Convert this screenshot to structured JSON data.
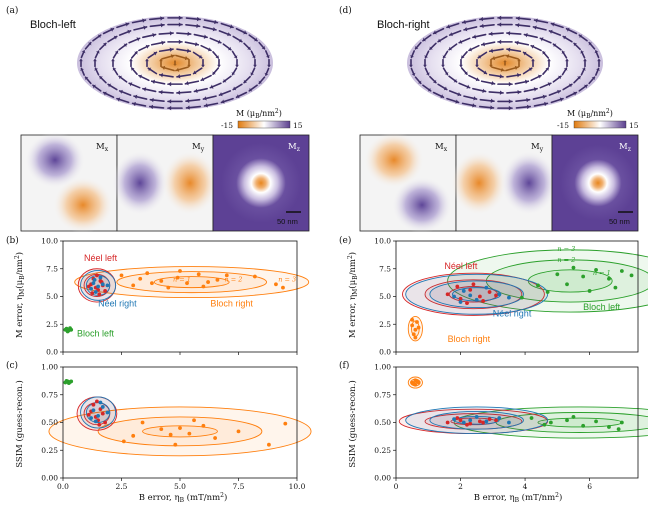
{
  "panel_labels": [
    "(a)",
    "(b)",
    "(c)",
    "(d)",
    "(e)",
    "(f)"
  ],
  "skyrmion_titles": {
    "left": "Bloch-left",
    "right": "Bloch-right"
  },
  "colorbar": {
    "title_main": "M (",
    "title_unit": "μ",
    "title_sub": "B",
    "title_rest": "/nm",
    "title_sup": "2",
    "title_close": ")",
    "min": "-15",
    "max": "15",
    "colors": [
      "#e07b10",
      "#ffffff",
      "#5b3f8f"
    ]
  },
  "component_labels": {
    "mx_main": "M",
    "mx_sub": "x",
    "my_main": "M",
    "my_sub": "y",
    "mz_main": "M",
    "mz_sub": "z"
  },
  "scale_bar": "50 nm",
  "colors": {
    "bloch_left": "#2ca02c",
    "bloch_right": "#ff7f0e",
    "neel_left": "#d62728",
    "neel_right": "#1f77b4",
    "skyrmion_rim": "#c8bedb",
    "arrow": "#3d2e66"
  },
  "chart_data": [
    {
      "type": "scatter",
      "panel": "(b)",
      "xlabel": "B error, η_B (mT/nm²)",
      "ylabel": "M error, η_M (μ_B/nm²)",
      "xlim": [
        0,
        10
      ],
      "ylim": [
        0,
        10
      ],
      "xticks": [
        "0.0",
        "2.5",
        "5.0",
        "7.5",
        "10.0"
      ],
      "yticks": [
        "0.0",
        "2.5",
        "5.0",
        "7.5",
        "10.0"
      ],
      "series": [
        {
          "name": "Néel left",
          "points": [
            [
              1.2,
              6.1
            ],
            [
              1.4,
              5.8
            ],
            [
              1.6,
              6.4
            ],
            [
              1.5,
              5.6
            ],
            [
              1.3,
              6.6
            ],
            [
              1.7,
              6.0
            ],
            [
              1.1,
              5.9
            ],
            [
              1.8,
              5.5
            ],
            [
              1.45,
              6.9
            ],
            [
              1.25,
              5.3
            ],
            [
              1.65,
              6.3
            ],
            [
              1.55,
              5.2
            ]
          ]
        },
        {
          "name": "Néel right",
          "points": [
            [
              1.3,
              6.2
            ],
            [
              1.5,
              5.9
            ],
            [
              1.7,
              6.1
            ],
            [
              1.4,
              5.4
            ],
            [
              1.6,
              6.7
            ],
            [
              1.2,
              5.7
            ],
            [
              1.9,
              6.0
            ],
            [
              1.35,
              6.5
            ]
          ]
        },
        {
          "name": "Bloch right",
          "points": [
            [
              2.5,
              6.9
            ],
            [
              3.0,
              6.0
            ],
            [
              3.6,
              7.1
            ],
            [
              4.2,
              6.4
            ],
            [
              4.9,
              6.7
            ],
            [
              5.3,
              6.2
            ],
            [
              5.8,
              7.0
            ],
            [
              6.2,
              6.3
            ],
            [
              4.5,
              5.8
            ],
            [
              3.3,
              6.6
            ],
            [
              6.6,
              6.5
            ],
            [
              8.2,
              6.8
            ],
            [
              9.1,
              6.1
            ],
            [
              9.4,
              5.8
            ],
            [
              5.0,
              7.3
            ],
            [
              7.0,
              6.9
            ],
            [
              3.8,
              6.2
            ],
            [
              6.0,
              5.9
            ]
          ]
        },
        {
          "name": "Bloch left",
          "points": [
            [
              0.1,
              2.0
            ],
            [
              0.2,
              1.9
            ],
            [
              0.3,
              2.05
            ],
            [
              0.25,
              1.95
            ],
            [
              0.15,
              2.1
            ],
            [
              0.35,
              2.0
            ],
            [
              0.2,
              1.85
            ],
            [
              0.3,
              2.15
            ]
          ]
        }
      ],
      "annotations": [
        "n = 1",
        "n = 2",
        "n = 3"
      ]
    },
    {
      "type": "scatter",
      "panel": "(c)",
      "xlabel": "B error, η_B (mT/nm²)",
      "ylabel": "SSIM (guess-recon.)",
      "xlim": [
        0,
        10
      ],
      "ylim": [
        0,
        1
      ],
      "xticks": [
        "0.0",
        "2.5",
        "5.0",
        "7.5",
        "10.0"
      ],
      "yticks": [
        "0.00",
        "0.25",
        "0.50",
        "0.75",
        "1.00"
      ],
      "series": [
        {
          "name": "Néel left",
          "points": [
            [
              1.2,
              0.6
            ],
            [
              1.4,
              0.55
            ],
            [
              1.6,
              0.62
            ],
            [
              1.5,
              0.52
            ],
            [
              1.3,
              0.66
            ],
            [
              1.7,
              0.58
            ],
            [
              1.1,
              0.57
            ],
            [
              1.8,
              0.5
            ],
            [
              1.45,
              0.69
            ],
            [
              1.55,
              0.48
            ]
          ]
        },
        {
          "name": "Néel right",
          "points": [
            [
              1.3,
              0.61
            ],
            [
              1.5,
              0.56
            ],
            [
              1.7,
              0.64
            ],
            [
              1.4,
              0.51
            ],
            [
              1.6,
              0.68
            ],
            [
              1.2,
              0.54
            ],
            [
              1.9,
              0.59
            ]
          ]
        },
        {
          "name": "Bloch right",
          "points": [
            [
              2.6,
              0.33
            ],
            [
              3.4,
              0.5
            ],
            [
              4.2,
              0.44
            ],
            [
              4.6,
              0.39
            ],
            [
              5.0,
              0.45
            ],
            [
              5.4,
              0.4
            ],
            [
              6.0,
              0.47
            ],
            [
              6.5,
              0.36
            ],
            [
              4.8,
              0.3
            ],
            [
              7.5,
              0.42
            ],
            [
              8.8,
              0.3
            ],
            [
              9.5,
              0.49
            ],
            [
              3.0,
              0.38
            ],
            [
              5.6,
              0.52
            ]
          ]
        },
        {
          "name": "Bloch left",
          "points": [
            [
              0.1,
              0.86
            ],
            [
              0.2,
              0.87
            ],
            [
              0.3,
              0.865
            ],
            [
              0.15,
              0.875
            ],
            [
              0.25,
              0.855
            ],
            [
              0.35,
              0.87
            ]
          ]
        }
      ]
    },
    {
      "type": "scatter",
      "panel": "(e)",
      "xlabel": "B error, η_B (mT/nm²)",
      "ylabel": "M error, η_M (μ_B/nm²)",
      "xlim": [
        0,
        7.5
      ],
      "ylim": [
        0,
        10
      ],
      "xticks": [
        "0",
        "2",
        "4",
        "6"
      ],
      "yticks": [
        "0.0",
        "2.5",
        "5.0",
        "7.5",
        "10.0"
      ],
      "series": [
        {
          "name": "Néel left",
          "points": [
            [
              1.6,
              5.2
            ],
            [
              2.0,
              4.8
            ],
            [
              2.3,
              5.6
            ],
            [
              2.6,
              5.0
            ],
            [
              2.9,
              5.4
            ],
            [
              2.2,
              4.4
            ],
            [
              1.9,
              5.9
            ],
            [
              2.7,
              4.6
            ],
            [
              3.1,
              5.1
            ],
            [
              2.4,
              6.1
            ]
          ]
        },
        {
          "name": "Néel right",
          "points": [
            [
              1.8,
              5.0
            ],
            [
              2.1,
              5.5
            ],
            [
              2.5,
              4.7
            ],
            [
              2.8,
              5.8
            ],
            [
              3.2,
              5.2
            ],
            [
              2.3,
              5.1
            ],
            [
              3.5,
              4.9
            ],
            [
              2.0,
              4.5
            ]
          ]
        },
        {
          "name": "Bloch right",
          "points": [
            [
              0.5,
              2.4
            ],
            [
              0.6,
              2.0
            ],
            [
              0.65,
              2.7
            ],
            [
              0.55,
              1.6
            ],
            [
              0.7,
              2.2
            ],
            [
              0.6,
              1.3
            ],
            [
              0.5,
              2.9
            ]
          ]
        },
        {
          "name": "Bloch left",
          "points": [
            [
              3.9,
              4.9
            ],
            [
              4.4,
              6.0
            ],
            [
              5.0,
              7.0
            ],
            [
              5.3,
              6.1
            ],
            [
              5.8,
              6.8
            ],
            [
              6.2,
              7.4
            ],
            [
              6.6,
              6.6
            ],
            [
              7.0,
              7.3
            ],
            [
              4.7,
              5.4
            ],
            [
              6.0,
              5.5
            ],
            [
              6.8,
              5.8
            ],
            [
              5.5,
              7.6
            ],
            [
              7.3,
              6.9
            ]
          ]
        }
      ],
      "annotations": [
        "n = 1",
        "n = 2",
        "n = 3"
      ]
    },
    {
      "type": "scatter",
      "panel": "(f)",
      "xlabel": "B error, η_B (mT/nm²)",
      "ylabel": "SSIM (guess-recon.)",
      "xlim": [
        0,
        7.5
      ],
      "ylim": [
        0,
        1
      ],
      "xticks": [
        "0",
        "2",
        "4",
        "6"
      ],
      "yticks": [
        "0.00",
        "0.25",
        "0.50",
        "0.75",
        "1.00"
      ],
      "series": [
        {
          "name": "Néel left",
          "points": [
            [
              1.6,
              0.5
            ],
            [
              2.0,
              0.52
            ],
            [
              2.3,
              0.49
            ],
            [
              2.6,
              0.51
            ],
            [
              2.9,
              0.53
            ],
            [
              2.2,
              0.48
            ],
            [
              1.9,
              0.54
            ],
            [
              2.7,
              0.5
            ],
            [
              3.1,
              0.52
            ]
          ]
        },
        {
          "name": "Néel right",
          "points": [
            [
              1.8,
              0.53
            ],
            [
              2.1,
              0.5
            ],
            [
              2.5,
              0.55
            ],
            [
              2.8,
              0.51
            ],
            [
              3.2,
              0.54
            ],
            [
              2.3,
              0.52
            ],
            [
              3.5,
              0.5
            ]
          ]
        },
        {
          "name": "Bloch right",
          "points": [
            [
              0.5,
              0.86
            ],
            [
              0.6,
              0.84
            ],
            [
              0.65,
              0.87
            ],
            [
              0.55,
              0.85
            ],
            [
              0.7,
              0.86
            ],
            [
              0.6,
              0.88
            ]
          ]
        },
        {
          "name": "Bloch left",
          "points": [
            [
              4.2,
              0.54
            ],
            [
              4.8,
              0.5
            ],
            [
              5.3,
              0.52
            ],
            [
              5.8,
              0.47
            ],
            [
              6.2,
              0.51
            ],
            [
              6.6,
              0.46
            ],
            [
              7.0,
              0.5
            ],
            [
              5.5,
              0.55
            ],
            [
              6.9,
              0.44
            ],
            [
              4.6,
              0.48
            ]
          ]
        }
      ]
    }
  ]
}
